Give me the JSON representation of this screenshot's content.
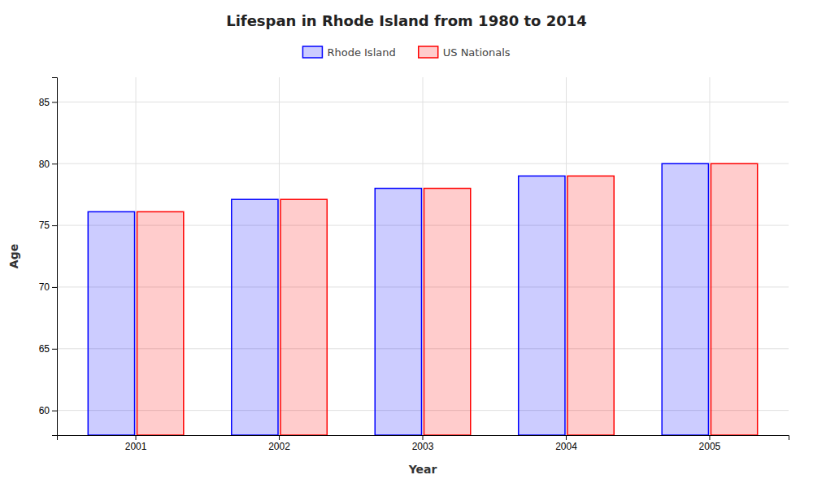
{
  "chart_data": {
    "type": "bar",
    "title": "Lifespan in Rhode Island from 1980 to 2014",
    "x_label": "Year",
    "y_label": "Age",
    "categories": [
      "2001",
      "2002",
      "2003",
      "2004",
      "2005"
    ],
    "series": [
      {
        "name": "Rhode Island",
        "color": "#0000ff",
        "values": [
          76.1,
          77.1,
          78.0,
          79.0,
          80.0
        ]
      },
      {
        "name": "US Nationals",
        "color": "#ff0000",
        "values": [
          76.1,
          77.1,
          78.0,
          79.0,
          80.0
        ]
      }
    ],
    "ylim": [
      58,
      87
    ],
    "yticks": [
      60,
      65,
      70,
      75,
      80,
      85
    ],
    "grid": true,
    "legend": "top"
  }
}
